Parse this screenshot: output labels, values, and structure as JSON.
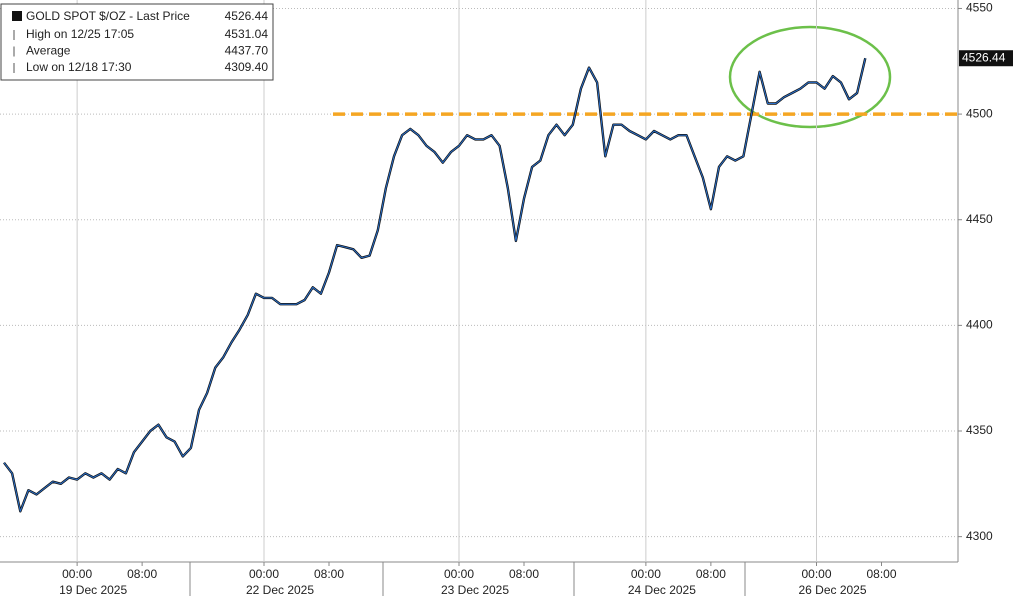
{
  "chart_data": {
    "type": "line",
    "legend": {
      "title": "GOLD SPOT $/OZ - Last Price",
      "stats": [
        {
          "label": "High on 12/25 17:05",
          "value": "4531.04"
        },
        {
          "label": "Average",
          "value": "4437.70"
        },
        {
          "label": "Low on 12/18 17:30",
          "value": "4309.40"
        }
      ]
    },
    "categories": [
      null,
      null,
      null,
      null,
      null,
      null,
      null,
      null,
      null,
      "00:00",
      null,
      null,
      null,
      null,
      null,
      null,
      null,
      "08:00",
      null,
      null,
      null,
      null,
      null,
      null,
      null,
      null,
      null,
      null,
      null,
      null,
      null,
      null,
      "00:00",
      null,
      null,
      null,
      null,
      null,
      null,
      null,
      "08:00",
      null,
      null,
      null,
      null,
      null,
      null,
      null,
      null,
      null,
      null,
      null,
      null,
      null,
      null,
      null,
      "00:00",
      null,
      null,
      null,
      null,
      null,
      null,
      null,
      "08:00",
      null,
      null,
      null,
      null,
      null,
      null,
      null,
      null,
      null,
      null,
      null,
      null,
      null,
      null,
      "00:00",
      null,
      null,
      null,
      null,
      null,
      null,
      null,
      "08:00",
      null,
      null,
      null,
      null,
      null,
      null,
      null,
      null,
      null,
      null,
      null,
      null,
      "00:00",
      null,
      null,
      null,
      null,
      null,
      null,
      null,
      "08:00",
      null,
      null,
      null,
      null,
      null,
      null,
      null,
      null,
      null
    ],
    "date_labels": [
      "19 Dec 2025",
      "22 Dec 2025",
      "23 Dec 2025",
      "24 Dec 2025",
      "26 Dec 2025"
    ],
    "series": [
      {
        "name": "GOLD SPOT $/OZ",
        "color": "#2a6fc9",
        "values": [
          4335,
          4330,
          4312,
          4322,
          4320,
          4323,
          4326,
          4325,
          4328,
          4327,
          4330,
          4328,
          4330,
          4327,
          4332,
          4330,
          4340,
          4345,
          4350,
          4353,
          4347,
          4345,
          4338,
          4342,
          4360,
          4368,
          4380,
          4385,
          4392,
          4398,
          4405,
          4415,
          4413,
          4413,
          4410,
          4410,
          4410,
          4412,
          4418,
          4415,
          4425,
          4438,
          4437,
          4436,
          4432,
          4433,
          4445,
          4465,
          4480,
          4490,
          4493,
          4490,
          4485,
          4482,
          4477,
          4482,
          4485,
          4490,
          4488,
          4488,
          4490,
          4485,
          4465,
          4440,
          4460,
          4475,
          4478,
          4490,
          4495,
          4490,
          4495,
          4512,
          4522,
          4515,
          4480,
          4495,
          4495,
          4492,
          4490,
          4488,
          4492,
          4490,
          4488,
          4490,
          4490,
          4480,
          4470,
          4455,
          4475,
          4480,
          4478,
          4480,
          4500,
          4520,
          4505,
          4505,
          4508,
          4510,
          4512,
          4515,
          4515,
          4512,
          4518,
          4515,
          4507,
          4510,
          4526.44,
          null,
          null,
          null,
          null,
          null,
          null,
          null,
          null,
          null,
          null,
          null
        ]
      }
    ],
    "hlines": [
      {
        "value": 4500,
        "color": "#f5a623"
      }
    ],
    "ylim": [
      4288,
      4554
    ],
    "yticks": [
      4300,
      4350,
      4400,
      4450,
      4500,
      4550
    ],
    "grid": true
  }
}
